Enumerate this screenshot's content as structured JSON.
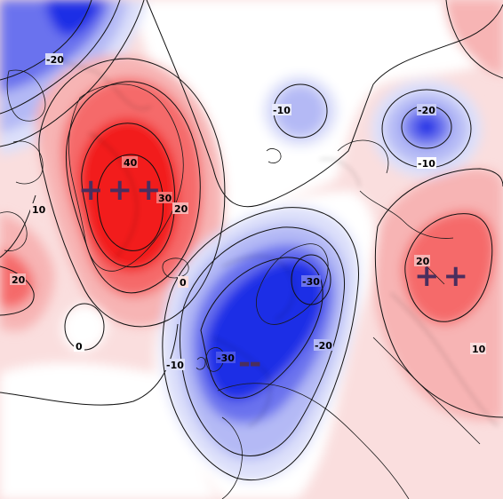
{
  "map": {
    "variable_style": "geopotential-height-anomaly",
    "colors": {
      "positive_strong": "#f21a1a",
      "positive_mid": "#f56a6a",
      "positive_light": "#f7b4b4",
      "positive_faint": "#fadede",
      "neutral": "#ffffff",
      "negative_faint": "#dde0fa",
      "negative_light": "#b4b9f5",
      "negative_mid": "#6a72ee",
      "negative_strong": "#1f2ee6",
      "contour_line": "#111111",
      "coastline": "#1a1a1a",
      "sign_mark": "#4b2e5e"
    },
    "contour_labels": {
      "nw_neg": "-20",
      "arctic_neg": "-10",
      "siberia_neg": "-20",
      "siberia_outer": "-10",
      "greenland_40": "40",
      "greenland_30": "30",
      "greenland_20": "20",
      "canada_10": "10",
      "atlantic_20": "20",
      "atlantic_0": "0",
      "greenland_0": "0",
      "scandi_neg30": "-30",
      "europe_neg30": "-30",
      "europe_neg20": "-20",
      "europe_neg10": "-10",
      "russia_20": "20",
      "russia_10": "10"
    },
    "sign_marks": {
      "greenland": "+++",
      "europe": "--",
      "russia": "++"
    }
  }
}
